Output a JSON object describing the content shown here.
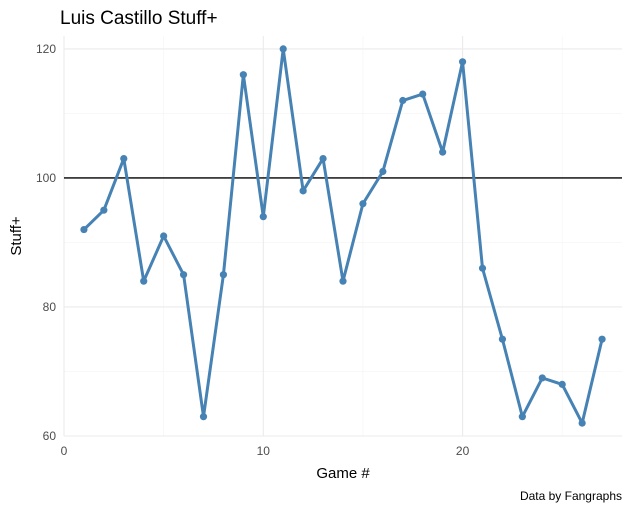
{
  "chart_data": {
    "type": "line",
    "title": "Luis Castillo Stuff+",
    "xlabel": "Game #",
    "ylabel": "Stuff+",
    "caption": "Data by Fangraphs",
    "xlim": [
      0,
      28
    ],
    "ylim": [
      60,
      122
    ],
    "x_ticks": [
      0,
      10,
      20
    ],
    "y_ticks": [
      60,
      80,
      100,
      120
    ],
    "reference_line": {
      "y": 100,
      "color": "#000000"
    },
    "grid": true,
    "legend": "none",
    "series": [
      {
        "color": "#4682b4",
        "x": [
          1,
          2,
          3,
          4,
          5,
          6,
          7,
          8,
          9,
          10,
          11,
          12,
          13,
          14,
          15,
          16,
          17,
          18,
          19,
          20,
          21,
          22,
          23,
          24,
          25,
          26,
          27
        ],
        "y": [
          92,
          95,
          103,
          84,
          91,
          85,
          63,
          85,
          116,
          94,
          120,
          98,
          103,
          84,
          96,
          101,
          112,
          113,
          104,
          118,
          86,
          75,
          63,
          69,
          68,
          62,
          75
        ]
      }
    ]
  }
}
